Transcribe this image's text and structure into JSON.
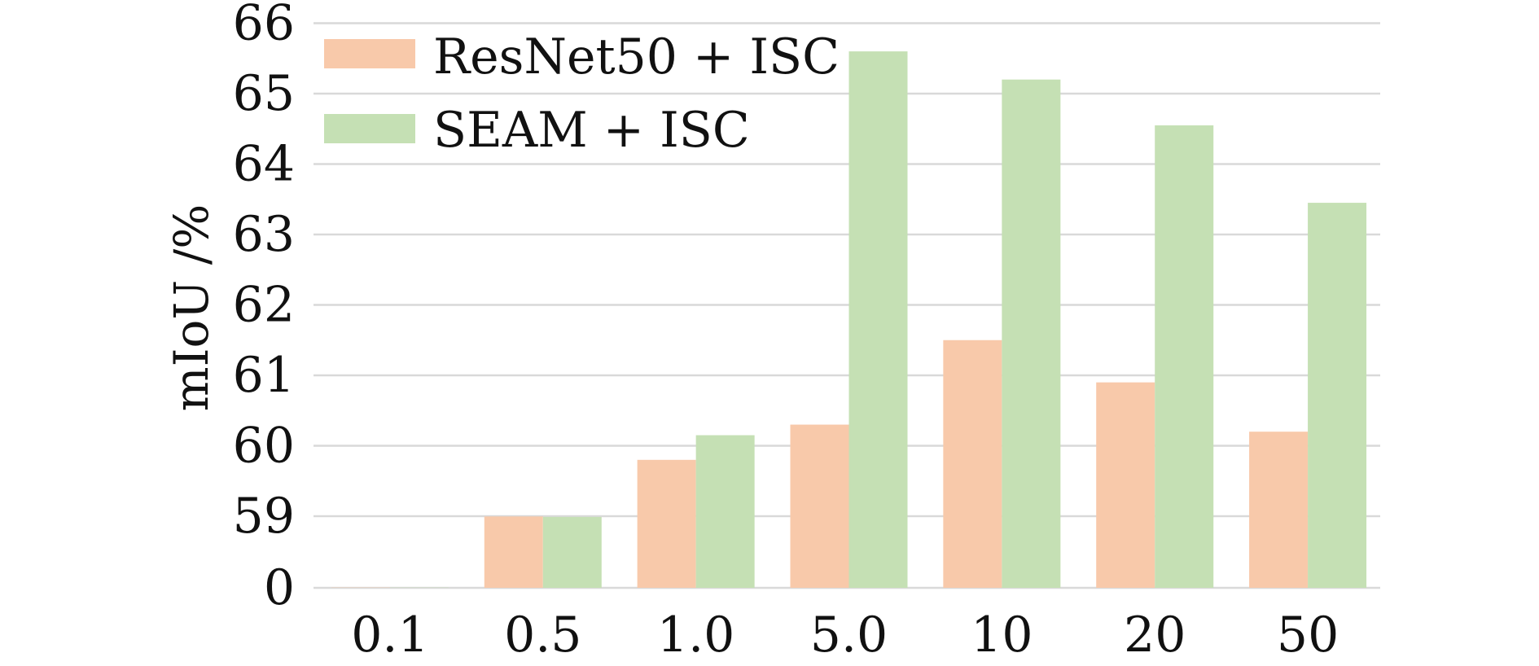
{
  "chart_data": {
    "type": "bar",
    "title": "",
    "xlabel": "",
    "ylabel": "mIoU /%",
    "categories": [
      "0.1",
      "0.5",
      "1.0",
      "5.0",
      "10",
      "20",
      "50"
    ],
    "series": [
      {
        "name": "ResNet50 + ISC",
        "color": "#f8c9aa",
        "values": [
          0.2,
          58.8,
          59.8,
          60.3,
          61.5,
          60.9,
          60.2
        ]
      },
      {
        "name": "SEAM + ISC",
        "color": "#c5e0b4",
        "values": [
          0.2,
          58.4,
          60.15,
          65.6,
          65.2,
          64.55,
          63.45
        ]
      }
    ],
    "y_axis": {
      "ticks": [
        "0",
        "59",
        "60",
        "61",
        "62",
        "63",
        "64",
        "65",
        "66"
      ],
      "broken": true,
      "break_note": "axis jumps from 0 to 59; values between 0 and 59 are compressed into the lowest band",
      "ylim": [
        0,
        66
      ]
    },
    "grid": true,
    "legend_position": "top-left"
  }
}
